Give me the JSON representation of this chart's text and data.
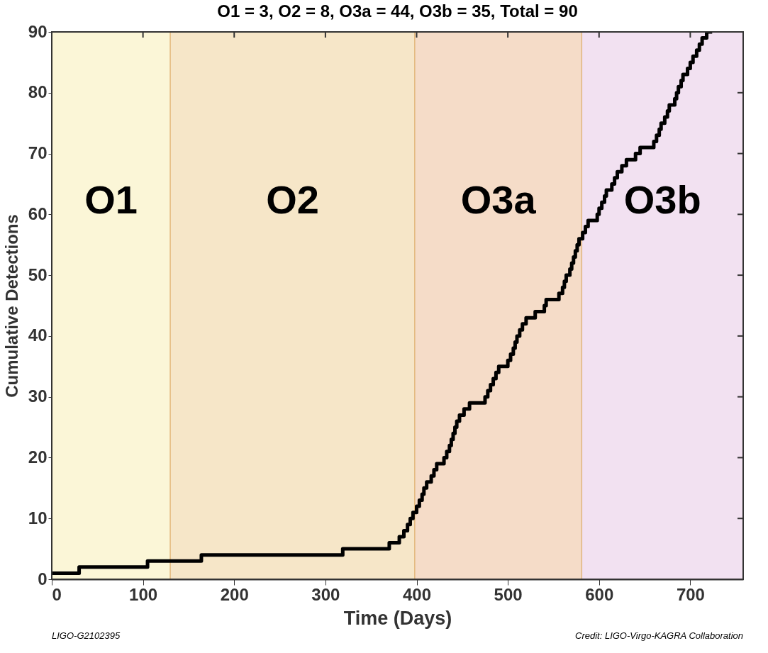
{
  "chart_data": {
    "type": "step",
    "title": "O1 = 3, O2 = 8, O3a = 44, O3b = 35, Total = 90",
    "xlabel": "Time (Days)",
    "ylabel": "Cumulative Detections",
    "xlim": [
      0,
      758
    ],
    "xticks": [
      0,
      100,
      200,
      300,
      400,
      500,
      600,
      700
    ],
    "ylim": [
      0,
      90
    ],
    "yticks": [
      0,
      10,
      20,
      30,
      40,
      50,
      60,
      70,
      80,
      90
    ],
    "marker": "none",
    "line_style": "solid",
    "bands": [
      {
        "axis": "x",
        "from": 0,
        "to": 130,
        "label": "O1",
        "color": "#fbf6d7"
      },
      {
        "axis": "x",
        "from": 130,
        "to": 398,
        "label": "O2",
        "color": "#f6e6c8"
      },
      {
        "axis": "x",
        "from": 398,
        "to": 581,
        "label": "O3a",
        "color": "#f5dcc8"
      },
      {
        "axis": "x",
        "from": 581,
        "to": 758,
        "label": "O3b",
        "color": "#f2e1f1"
      }
    ],
    "annotations": [
      "LIGO-G2102395",
      "Credit: LIGO-Virgo-KAGRA Collaboration"
    ],
    "series": [
      {
        "color": "#000000",
        "x": [
          0,
          30,
          105,
          164,
          319,
          370,
          381,
          386,
          390,
          393,
          396,
          400,
          403,
          406,
          408,
          411,
          416,
          419,
          422,
          430,
          433,
          436,
          438,
          440,
          442,
          444,
          447,
          452,
          458,
          475,
          478,
          481,
          484,
          487,
          490,
          500,
          503,
          506,
          508,
          510,
          513,
          516,
          520,
          530,
          540,
          542,
          556,
          560,
          562,
          564,
          568,
          570,
          572,
          574,
          576,
          578,
          582,
          585,
          588,
          598,
          600,
          603,
          606,
          608,
          614,
          617,
          620,
          625,
          630,
          640,
          645,
          660,
          663,
          666,
          668,
          672,
          675,
          677,
          683,
          685,
          687,
          690,
          692,
          697,
          700,
          703,
          707,
          710,
          713,
          718,
          724
        ],
        "values": [
          1,
          2,
          3,
          4,
          5,
          6,
          7,
          8,
          9,
          10,
          11,
          12,
          13,
          14,
          15,
          16,
          17,
          18,
          19,
          20,
          21,
          22,
          23,
          24,
          25,
          26,
          27,
          28,
          29,
          30,
          31,
          32,
          33,
          34,
          35,
          36,
          37,
          38,
          39,
          40,
          41,
          42,
          43,
          44,
          45,
          46,
          47,
          48,
          49,
          50,
          51,
          52,
          53,
          54,
          55,
          56,
          57,
          58,
          59,
          60,
          61,
          62,
          63,
          64,
          65,
          66,
          67,
          68,
          69,
          70,
          71,
          72,
          73,
          74,
          75,
          76,
          77,
          78,
          79,
          80,
          81,
          82,
          83,
          84,
          85,
          86,
          87,
          88,
          89,
          90,
          90
        ]
      }
    ]
  }
}
